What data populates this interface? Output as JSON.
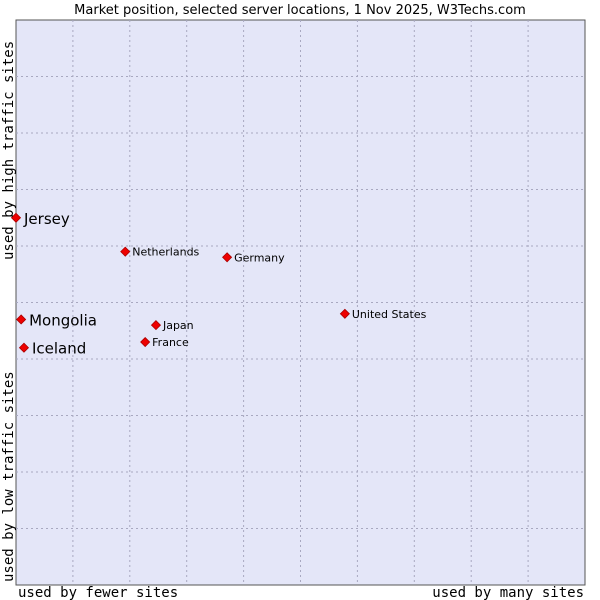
{
  "chart_data": {
    "type": "scatter",
    "title": "Market position, selected server locations, 1 Nov 2025, W3Techs.com",
    "xlabel_left": "used by fewer sites",
    "xlabel_right": "used by many sites",
    "ylabel_top": "used by high traffic sites",
    "ylabel_bottom": "used by low traffic sites",
    "xlim": [
      0,
      100
    ],
    "ylim": [
      0,
      100
    ],
    "grid": true,
    "colors": {
      "plot_background": "#e4e6f8",
      "grid": "#a8a8c0",
      "marker": "#ee0000",
      "text": "#000000"
    },
    "points": [
      {
        "label": "Jersey",
        "x": 0,
        "y": 65,
        "highlight": true
      },
      {
        "label": "Mongolia",
        "x": 0.9,
        "y": 47,
        "highlight": true
      },
      {
        "label": "Iceland",
        "x": 1.4,
        "y": 42,
        "highlight": true
      },
      {
        "label": "Netherlands",
        "x": 19.2,
        "y": 59,
        "highlight": false
      },
      {
        "label": "Germany",
        "x": 37.1,
        "y": 58,
        "highlight": false
      },
      {
        "label": "Japan",
        "x": 24.6,
        "y": 46,
        "highlight": false
      },
      {
        "label": "France",
        "x": 22.7,
        "y": 43,
        "highlight": false
      },
      {
        "label": "United States",
        "x": 57.8,
        "y": 48,
        "highlight": false
      }
    ]
  }
}
